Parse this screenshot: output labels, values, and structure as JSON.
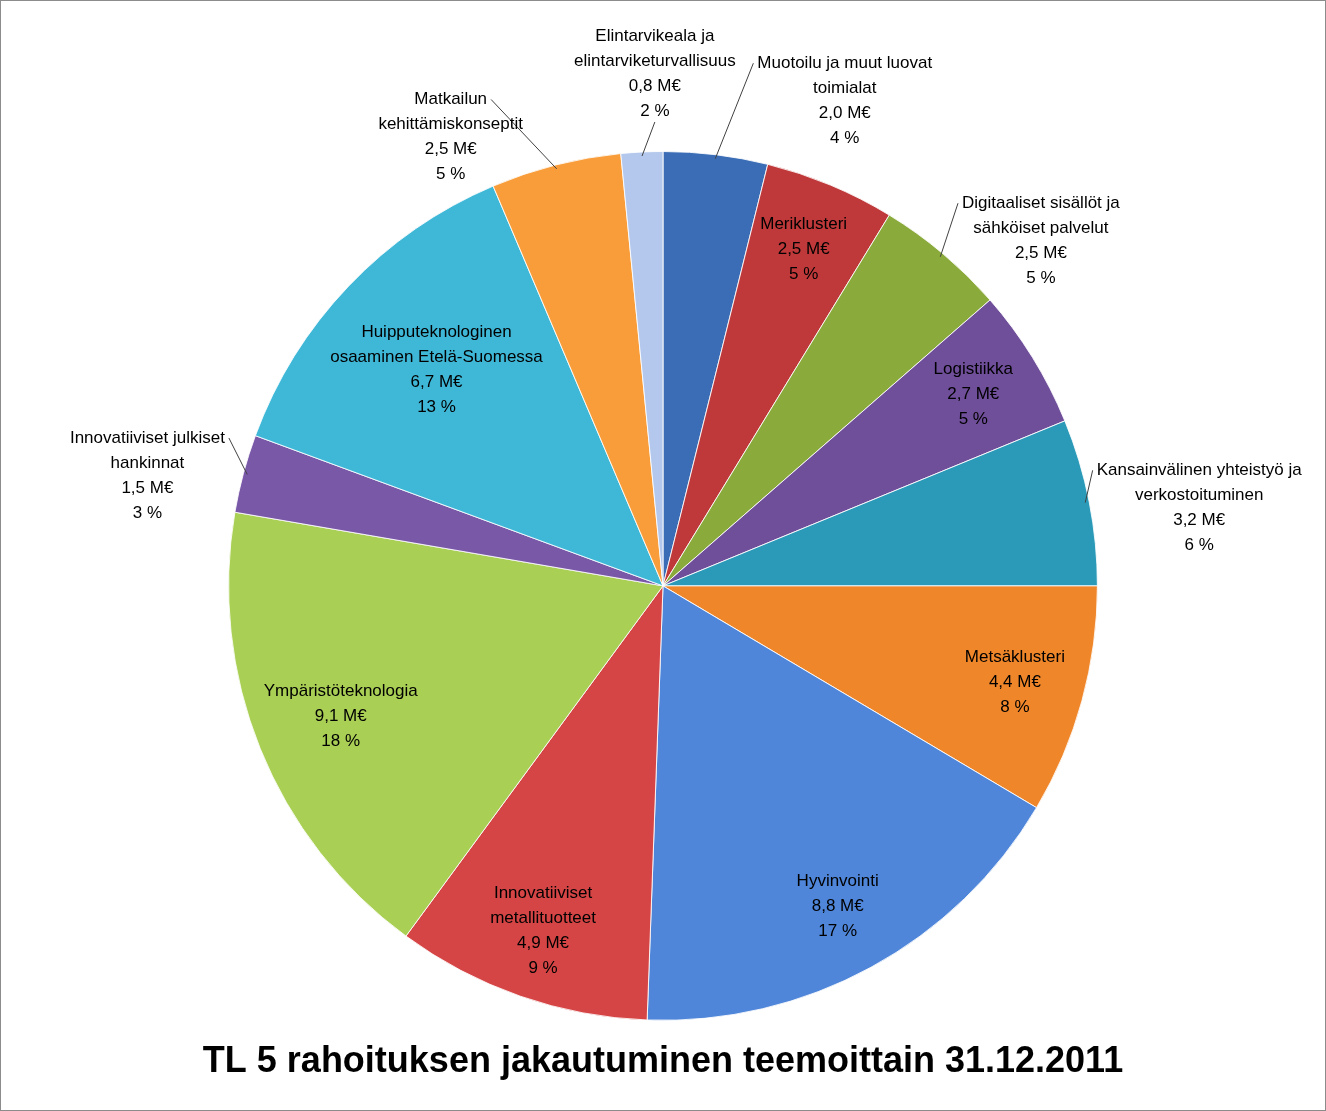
{
  "chart_data": {
    "type": "pie",
    "title": "TL 5 rahoituksen jakautuminen teemoittain 31.12.2011",
    "categories": [
      "Muotoilu ja muut luovat toimialat",
      "Meriklusteri",
      "Digitaaliset sisällöt ja sähköiset palvelut",
      "Logistiikka",
      "Kansainvälinen yhteistyö ja verkostoituminen",
      "Metsäklusteri",
      "Hyvinvointi",
      "Innovatiiviset metallituotteet",
      "Ympäristöteknologia",
      "Innovatiiviset julkiset hankinnat",
      "Huipputeknologinen osaaminen Etelä-Suomessa",
      "Matkailun kehittämiskonseptit",
      "Elintarvikeala ja elintarviketurvallisuus"
    ],
    "values": [
      2.0,
      2.5,
      2.5,
      2.7,
      3.2,
      4.4,
      8.8,
      4.9,
      9.1,
      1.5,
      6.7,
      2.5,
      0.8
    ],
    "value_labels": [
      "2,0 M€",
      "2,5 M€",
      "2,5 M€",
      "2,7 M€",
      "3,2 M€",
      "4,4 M€",
      "8,8 M€",
      "4,9 M€",
      "9,1 M€",
      "1,5 M€",
      "6,7 M€",
      "2,5 M€",
      "0,8 M€"
    ],
    "shares": [
      4,
      5,
      5,
      5,
      6,
      8,
      17,
      9,
      18,
      3,
      13,
      5,
      2
    ],
    "share_labels": [
      "4 %",
      "5 %",
      "5 %",
      "5 %",
      "6 %",
      "8 %",
      "17 %",
      "9 %",
      "18 %",
      "3 %",
      "13 %",
      "5 %",
      "2 %"
    ],
    "colors": [
      "#3a6db5",
      "#c0393a",
      "#8aaa3c",
      "#6f4e9a",
      "#2b9ab8",
      "#f0862a",
      "#4f86d9",
      "#d64545",
      "#a9cf55",
      "#7a58a8",
      "#3fb8d8",
      "#f99d3a",
      "#b3c8ec"
    ],
    "data_labels": true,
    "legend": false
  }
}
